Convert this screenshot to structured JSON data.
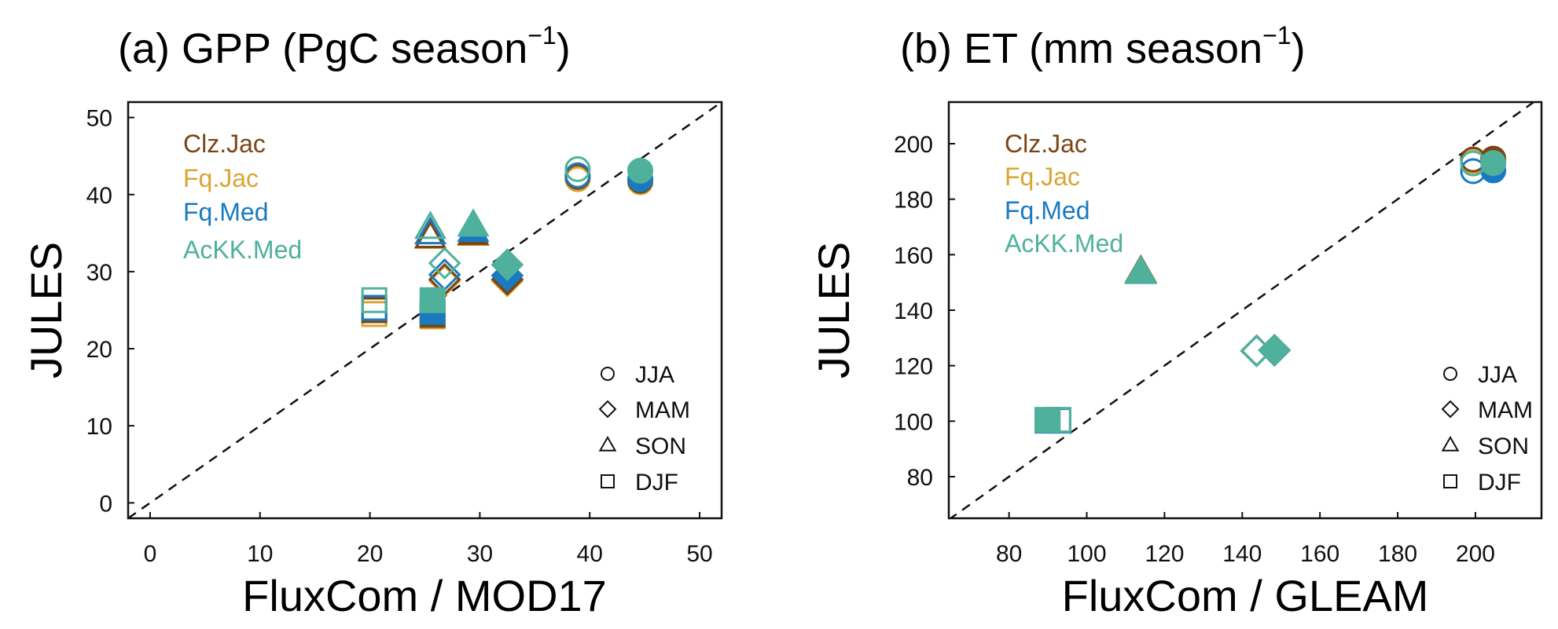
{
  "colors": {
    "Clz.Jac": "#7a4515",
    "Fq.Jac": "#d9a534",
    "Fq.Med": "#1a7abf",
    "AcKK.Med": "#4fb19c"
  },
  "chart_data": [
    {
      "type": "scatter",
      "title_prefix": "(a) GPP (PgC season",
      "title_sup": "−1",
      "title_suffix": ")",
      "xlabel": "FluxCom / MOD17",
      "ylabel": "JULES",
      "xlim": [
        -2,
        52
      ],
      "ylim": [
        -2,
        52
      ],
      "xticks": [
        0,
        10,
        20,
        30,
        40,
        50
      ],
      "yticks": [
        0,
        10,
        20,
        30,
        40,
        50
      ],
      "one_to_one_line": true,
      "model_legend": [
        "Clz.Jac",
        "Fq.Jac",
        "Fq.Med",
        "AcKK.Med"
      ],
      "season_legend": [
        {
          "label": "JJA",
          "marker": "circle"
        },
        {
          "label": "MAM",
          "marker": "diamond"
        },
        {
          "label": "SON",
          "marker": "triangle"
        },
        {
          "label": "DJF",
          "marker": "square"
        }
      ],
      "marker_fill_meaning": {
        "open": "FluxCom",
        "filled": "MOD17"
      },
      "series": [
        {
          "name": "Clz.Jac",
          "points": [
            {
              "season": "JJA",
              "ref": "FluxCom",
              "x": 38.9,
              "y": 42.3
            },
            {
              "season": "JJA",
              "ref": "MOD17",
              "x": 44.6,
              "y": 41.8
            },
            {
              "season": "MAM",
              "ref": "FluxCom",
              "x": 26.8,
              "y": 29.0
            },
            {
              "season": "MAM",
              "ref": "MOD17",
              "x": 32.5,
              "y": 29.0
            },
            {
              "season": "SON",
              "ref": "FluxCom",
              "x": 25.5,
              "y": 34.5
            },
            {
              "season": "SON",
              "ref": "MOD17",
              "x": 29.4,
              "y": 34.9
            },
            {
              "season": "DJF",
              "ref": "FluxCom",
              "x": 20.4,
              "y": 25.0
            },
            {
              "season": "DJF",
              "ref": "MOD17",
              "x": 25.7,
              "y": 24.4
            }
          ]
        },
        {
          "name": "Fq.Jac",
          "points": [
            {
              "season": "JJA",
              "ref": "FluxCom",
              "x": 38.9,
              "y": 42.0
            },
            {
              "season": "JJA",
              "ref": "MOD17",
              "x": 44.6,
              "y": 41.6
            },
            {
              "season": "MAM",
              "ref": "FluxCom",
              "x": 26.8,
              "y": 28.8
            },
            {
              "season": "MAM",
              "ref": "MOD17",
              "x": 32.5,
              "y": 28.8
            },
            {
              "season": "SON",
              "ref": "FluxCom",
              "x": 25.5,
              "y": 34.4
            },
            {
              "season": "SON",
              "ref": "MOD17",
              "x": 29.4,
              "y": 34.8
            },
            {
              "season": "DJF",
              "ref": "FluxCom",
              "x": 20.4,
              "y": 24.5
            },
            {
              "season": "DJF",
              "ref": "MOD17",
              "x": 25.7,
              "y": 24.2
            }
          ]
        },
        {
          "name": "Fq.Med",
          "points": [
            {
              "season": "JJA",
              "ref": "FluxCom",
              "x": 38.9,
              "y": 42.5
            },
            {
              "season": "JJA",
              "ref": "MOD17",
              "x": 44.6,
              "y": 42.0
            },
            {
              "season": "MAM",
              "ref": "FluxCom",
              "x": 26.8,
              "y": 29.6
            },
            {
              "season": "MAM",
              "ref": "MOD17",
              "x": 32.5,
              "y": 29.5
            },
            {
              "season": "SON",
              "ref": "FluxCom",
              "x": 25.5,
              "y": 35.0
            },
            {
              "season": "SON",
              "ref": "MOD17",
              "x": 29.4,
              "y": 35.3
            },
            {
              "season": "DJF",
              "ref": "FluxCom",
              "x": 20.4,
              "y": 25.3
            },
            {
              "season": "DJF",
              "ref": "MOD17",
              "x": 25.7,
              "y": 24.8
            }
          ]
        },
        {
          "name": "AcKK.Med",
          "points": [
            {
              "season": "JJA",
              "ref": "FluxCom",
              "x": 38.9,
              "y": 43.3
            },
            {
              "season": "JJA",
              "ref": "MOD17",
              "x": 44.6,
              "y": 43.1
            },
            {
              "season": "MAM",
              "ref": "FluxCom",
              "x": 26.8,
              "y": 31.1
            },
            {
              "season": "MAM",
              "ref": "MOD17",
              "x": 32.5,
              "y": 30.9
            },
            {
              "season": "SON",
              "ref": "FluxCom",
              "x": 25.5,
              "y": 35.7
            },
            {
              "season": "SON",
              "ref": "MOD17",
              "x": 29.4,
              "y": 36.0
            },
            {
              "season": "DJF",
              "ref": "FluxCom",
              "x": 20.4,
              "y": 26.3
            },
            {
              "season": "DJF",
              "ref": "MOD17",
              "x": 25.7,
              "y": 26.3
            }
          ]
        }
      ]
    },
    {
      "type": "scatter",
      "title_prefix": "(b) ET (mm season",
      "title_sup": "−1",
      "title_suffix": ")",
      "xlabel": "FluxCom / GLEAM",
      "ylabel": "JULES",
      "xlim": [
        64.5,
        217
      ],
      "ylim": [
        65,
        215
      ],
      "xticks": [
        80,
        100,
        120,
        140,
        160,
        180,
        200
      ],
      "yticks": [
        80,
        100,
        120,
        140,
        160,
        180,
        200
      ],
      "one_to_one_line": true,
      "model_legend": [
        "Clz.Jac",
        "Fq.Jac",
        "Fq.Med",
        "AcKK.Med"
      ],
      "season_legend": [
        {
          "label": "JJA",
          "marker": "circle"
        },
        {
          "label": "MAM",
          "marker": "diamond"
        },
        {
          "label": "SON",
          "marker": "triangle"
        },
        {
          "label": "DJF",
          "marker": "square"
        }
      ],
      "marker_fill_meaning": {
        "open": "FluxCom",
        "filled": "GLEAM"
      },
      "series": [
        {
          "name": "Clz.Jac",
          "points": [
            {
              "season": "JJA",
              "ref": "FluxCom",
              "x": 199.4,
              "y": 194.3
            },
            {
              "season": "JJA",
              "ref": "GLEAM",
              "x": 204.6,
              "y": 194.6
            },
            {
              "season": "MAM",
              "ref": "FluxCom",
              "x": 143.7,
              "y": 125.4
            },
            {
              "season": "MAM",
              "ref": "GLEAM",
              "x": 148.3,
              "y": 125.6
            },
            {
              "season": "SON",
              "ref": "FluxCom",
              "x": 113.9,
              "y": 153.9
            },
            {
              "season": "SON",
              "ref": "GLEAM",
              "x": 113.9,
              "y": 153.9
            },
            {
              "season": "DJF",
              "ref": "FluxCom",
              "x": 92.7,
              "y": 100.4
            },
            {
              "season": "DJF",
              "ref": "GLEAM",
              "x": 89.9,
              "y": 100.4
            }
          ]
        },
        {
          "name": "Fq.Jac",
          "points": [
            {
              "season": "JJA",
              "ref": "FluxCom",
              "x": 199.4,
              "y": 193.8
            },
            {
              "season": "JJA",
              "ref": "GLEAM",
              "x": 204.6,
              "y": 194.0
            },
            {
              "season": "MAM",
              "ref": "FluxCom",
              "x": 143.7,
              "y": 125.4
            },
            {
              "season": "MAM",
              "ref": "GLEAM",
              "x": 148.3,
              "y": 125.6
            },
            {
              "season": "SON",
              "ref": "FluxCom",
              "x": 113.9,
              "y": 154.0
            },
            {
              "season": "SON",
              "ref": "GLEAM",
              "x": 113.9,
              "y": 154.0
            },
            {
              "season": "DJF",
              "ref": "FluxCom",
              "x": 92.7,
              "y": 100.4
            },
            {
              "season": "DJF",
              "ref": "GLEAM",
              "x": 89.9,
              "y": 100.4
            }
          ]
        },
        {
          "name": "Fq.Med",
          "points": [
            {
              "season": "JJA",
              "ref": "FluxCom",
              "x": 199.4,
              "y": 190.1
            },
            {
              "season": "JJA",
              "ref": "GLEAM",
              "x": 204.6,
              "y": 190.4
            },
            {
              "season": "MAM",
              "ref": "FluxCom",
              "x": 143.7,
              "y": 125.3
            },
            {
              "season": "MAM",
              "ref": "GLEAM",
              "x": 148.3,
              "y": 125.5
            },
            {
              "season": "SON",
              "ref": "FluxCom",
              "x": 113.9,
              "y": 153.5
            },
            {
              "season": "SON",
              "ref": "GLEAM",
              "x": 113.9,
              "y": 153.5
            },
            {
              "season": "DJF",
              "ref": "FluxCom",
              "x": 92.7,
              "y": 100.2
            },
            {
              "season": "DJF",
              "ref": "GLEAM",
              "x": 89.9,
              "y": 100.2
            }
          ]
        },
        {
          "name": "AcKK.Med",
          "points": [
            {
              "season": "JJA",
              "ref": "FluxCom",
              "x": 199.4,
              "y": 192.9
            },
            {
              "season": "JJA",
              "ref": "GLEAM",
              "x": 204.6,
              "y": 193.0
            },
            {
              "season": "MAM",
              "ref": "FluxCom",
              "x": 143.7,
              "y": 125.4
            },
            {
              "season": "MAM",
              "ref": "GLEAM",
              "x": 148.3,
              "y": 125.6
            },
            {
              "season": "SON",
              "ref": "FluxCom",
              "x": 113.9,
              "y": 153.7
            },
            {
              "season": "SON",
              "ref": "GLEAM",
              "x": 113.9,
              "y": 153.7
            },
            {
              "season": "DJF",
              "ref": "FluxCom",
              "x": 92.7,
              "y": 100.4
            },
            {
              "season": "DJF",
              "ref": "GLEAM",
              "x": 89.9,
              "y": 100.4
            }
          ]
        }
      ]
    }
  ]
}
